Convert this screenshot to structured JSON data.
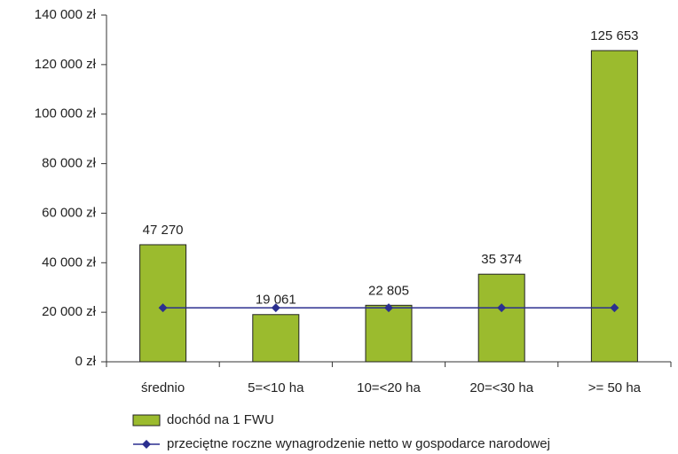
{
  "chart_data": {
    "type": "bar",
    "categories": [
      "średnio",
      "5=<10 ha",
      "10=<20 ha",
      "20=<30 ha",
      ">= 50 ha"
    ],
    "series": [
      {
        "name": "dochód na 1 FWU",
        "type": "bar",
        "color": "#9bbb2e",
        "values": [
          47270,
          19061,
          22805,
          35374,
          125653
        ],
        "value_labels": [
          "47 270",
          "19 061",
          "22 805",
          "35 374",
          "125 653"
        ]
      },
      {
        "name": "przeciętne roczne wynagrodzenie netto w gospodarce narodowej",
        "type": "line",
        "color": "#2b2f8f",
        "values": [
          21800,
          21800,
          21800,
          21800,
          21800
        ]
      }
    ],
    "ylim": [
      0,
      140000
    ],
    "yticks": [
      {
        "value": 0,
        "label": "0 zł"
      },
      {
        "value": 20000,
        "label": "20 000 zł"
      },
      {
        "value": 40000,
        "label": "40 000 zł"
      },
      {
        "value": 60000,
        "label": "60 000 zł"
      },
      {
        "value": 80000,
        "label": "80 000 zł"
      },
      {
        "value": 100000,
        "label": "100 000 zł"
      },
      {
        "value": 120000,
        "label": "120 000 zł"
      },
      {
        "value": 140000,
        "label": "140 000 zł"
      }
    ],
    "legend": "bottom"
  }
}
